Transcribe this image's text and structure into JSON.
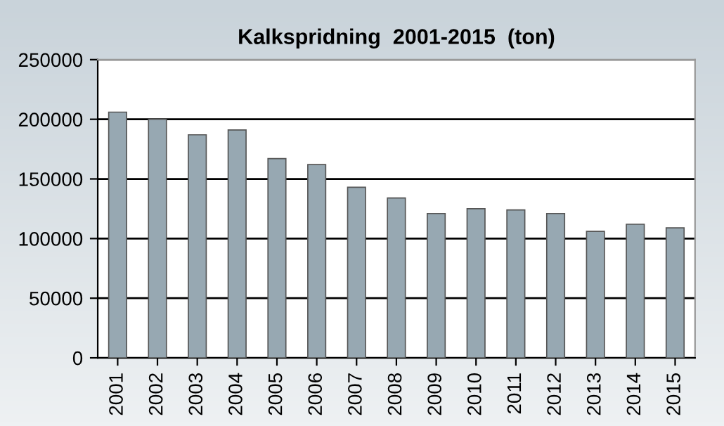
{
  "chart_data": {
    "type": "bar",
    "title": "Kalkspridning  2001-2015  (ton)",
    "categories": [
      "2001",
      "2002",
      "2003",
      "2004",
      "2005",
      "2006",
      "2007",
      "2008",
      "2009",
      "2010",
      "2011",
      "2012",
      "2013",
      "2014",
      "2015"
    ],
    "values": [
      206000,
      200000,
      187000,
      191000,
      167000,
      162000,
      143000,
      134000,
      121000,
      125000,
      124000,
      121000,
      106000,
      112000,
      109000
    ],
    "color": "#97a8b2",
    "ylim": [
      0,
      250000
    ],
    "yticks": [
      0,
      50000,
      100000,
      150000,
      200000,
      250000
    ],
    "grid": "y"
  }
}
